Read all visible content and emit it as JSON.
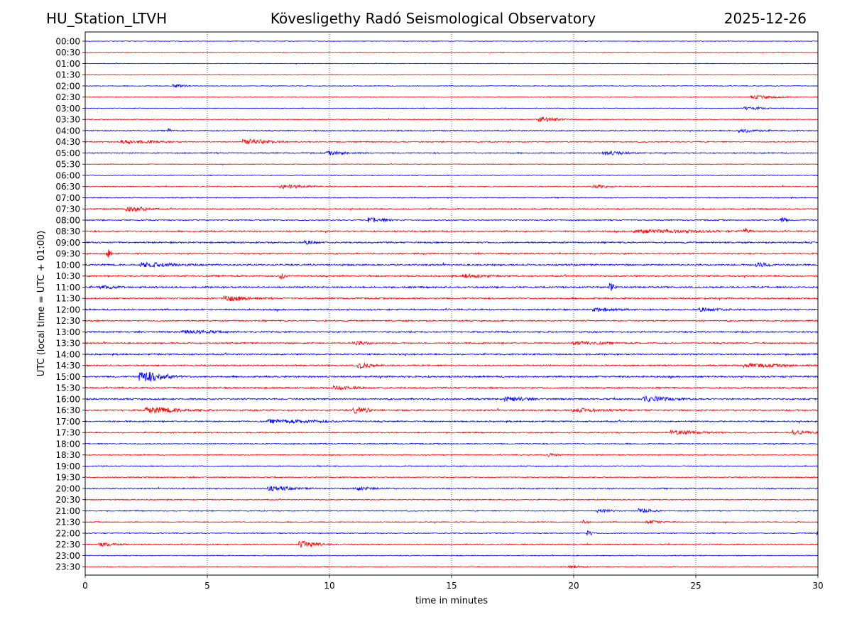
{
  "header": {
    "station": "HU_Station_LTVH",
    "title": "Kövesligethy Radó Seismological Observatory",
    "date": "2025-12-26"
  },
  "chart_data": {
    "type": "line",
    "title": "Kövesligethy Radó Seismological Observatory",
    "xlabel": "time in minutes",
    "ylabel": "UTC (local time = UTC + 01:00)",
    "xlim": [
      0,
      30
    ],
    "xticks": [
      0,
      5,
      10,
      15,
      20,
      25,
      30
    ],
    "grid": "vertical dotted at x ticks",
    "trace_colors": [
      "#0000ff",
      "#ff0000"
    ],
    "row_labels": [
      "00:00",
      "00:30",
      "01:00",
      "01:30",
      "02:00",
      "02:30",
      "03:00",
      "03:30",
      "04:00",
      "04:30",
      "05:00",
      "05:30",
      "06:00",
      "06:30",
      "07:00",
      "07:30",
      "08:00",
      "08:30",
      "09:00",
      "09:30",
      "10:00",
      "10:30",
      "11:00",
      "11:30",
      "12:00",
      "12:30",
      "13:00",
      "13:30",
      "14:00",
      "14:30",
      "15:00",
      "15:30",
      "16:00",
      "16:30",
      "17:00",
      "17:30",
      "18:00",
      "18:30",
      "19:00",
      "19:30",
      "20:00",
      "20:30",
      "21:00",
      "21:30",
      "22:00",
      "22:30",
      "23:00",
      "23:30"
    ],
    "noise_levels": [
      0.5,
      0.5,
      0.5,
      0.5,
      0.6,
      0.6,
      0.6,
      0.6,
      0.8,
      0.9,
      0.9,
      0.6,
      0.6,
      0.8,
      0.7,
      0.9,
      0.9,
      1.1,
      1.2,
      1.1,
      1.3,
      1.2,
      1.3,
      1.2,
      1.2,
      1.1,
      1.2,
      1.1,
      1.2,
      1.1,
      1.3,
      1.2,
      1.3,
      1.2,
      1.1,
      1.0,
      0.9,
      0.8,
      0.8,
      0.8,
      0.9,
      0.8,
      0.8,
      0.8,
      0.8,
      0.9,
      0.7,
      0.6
    ],
    "events": [
      {
        "row": 4,
        "t": 3.6,
        "amp": 2.0,
        "dur": 0.8
      },
      {
        "row": 5,
        "t": 27.3,
        "amp": 2.0,
        "dur": 1.8
      },
      {
        "row": 6,
        "t": 27.0,
        "amp": 2.0,
        "dur": 1.2
      },
      {
        "row": 7,
        "t": 18.6,
        "amp": 3.5,
        "dur": 1.2
      },
      {
        "row": 8,
        "t": 3.4,
        "amp": 2.0,
        "dur": 0.2
      },
      {
        "row": 8,
        "t": 26.8,
        "amp": 2.0,
        "dur": 1.5
      },
      {
        "row": 9,
        "t": 1.5,
        "amp": 2.0,
        "dur": 2.5
      },
      {
        "row": 9,
        "t": 6.5,
        "amp": 3.0,
        "dur": 2.0
      },
      {
        "row": 10,
        "t": 9.9,
        "amp": 2.0,
        "dur": 1.5
      },
      {
        "row": 10,
        "t": 21.2,
        "amp": 2.5,
        "dur": 1.5
      },
      {
        "row": 13,
        "t": 8.0,
        "amp": 2.2,
        "dur": 2.0
      },
      {
        "row": 13,
        "t": 20.8,
        "amp": 2.0,
        "dur": 1.0
      },
      {
        "row": 15,
        "t": 1.7,
        "amp": 3.5,
        "dur": 1.3
      },
      {
        "row": 16,
        "t": 11.6,
        "amp": 3.0,
        "dur": 1.3
      },
      {
        "row": 16,
        "t": 28.5,
        "amp": 3.5,
        "dur": 0.3
      },
      {
        "row": 17,
        "t": 22.5,
        "amp": 2.0,
        "dur": 5.0
      },
      {
        "row": 17,
        "t": 27.0,
        "amp": 4.0,
        "dur": 0.2
      },
      {
        "row": 18,
        "t": 9.0,
        "amp": 2.0,
        "dur": 0.8
      },
      {
        "row": 19,
        "t": 0.9,
        "amp": 6.0,
        "dur": 0.2
      },
      {
        "row": 20,
        "t": 2.3,
        "amp": 2.5,
        "dur": 2.5
      },
      {
        "row": 20,
        "t": 27.5,
        "amp": 2.5,
        "dur": 1.0
      },
      {
        "row": 21,
        "t": 8.0,
        "amp": 4.0,
        "dur": 0.3
      },
      {
        "row": 21,
        "t": 15.5,
        "amp": 2.0,
        "dur": 1.5
      },
      {
        "row": 22,
        "t": 21.5,
        "amp": 6.0,
        "dur": 0.2
      },
      {
        "row": 22,
        "t": 0.6,
        "amp": 2.0,
        "dur": 1.0
      },
      {
        "row": 23,
        "t": 5.7,
        "amp": 3.5,
        "dur": 1.5
      },
      {
        "row": 24,
        "t": 20.8,
        "amp": 2.0,
        "dur": 1.5
      },
      {
        "row": 24,
        "t": 25.2,
        "amp": 2.0,
        "dur": 1.5
      },
      {
        "row": 26,
        "t": 4.0,
        "amp": 1.8,
        "dur": 2.5
      },
      {
        "row": 27,
        "t": 11.0,
        "amp": 2.0,
        "dur": 1.0
      },
      {
        "row": 27,
        "t": 20.0,
        "amp": 2.0,
        "dur": 2.0
      },
      {
        "row": 29,
        "t": 11.2,
        "amp": 3.0,
        "dur": 1.0
      },
      {
        "row": 29,
        "t": 27.0,
        "amp": 2.0,
        "dur": 3.0
      },
      {
        "row": 30,
        "t": 2.2,
        "amp": 7.0,
        "dur": 1.8
      },
      {
        "row": 31,
        "t": 10.2,
        "amp": 2.0,
        "dur": 1.5
      },
      {
        "row": 32,
        "t": 17.2,
        "amp": 2.5,
        "dur": 1.5
      },
      {
        "row": 32,
        "t": 22.8,
        "amp": 3.0,
        "dur": 2.0
      },
      {
        "row": 33,
        "t": 2.5,
        "amp": 3.5,
        "dur": 2.5
      },
      {
        "row": 33,
        "t": 11.0,
        "amp": 3.5,
        "dur": 1.0
      },
      {
        "row": 33,
        "t": 20.0,
        "amp": 2.0,
        "dur": 2.0
      },
      {
        "row": 34,
        "t": 7.5,
        "amp": 2.0,
        "dur": 4.0
      },
      {
        "row": 35,
        "t": 24.0,
        "amp": 2.5,
        "dur": 2.0
      },
      {
        "row": 35,
        "t": 29.0,
        "amp": 2.5,
        "dur": 1.0
      },
      {
        "row": 37,
        "t": 19.0,
        "amp": 2.0,
        "dur": 0.6
      },
      {
        "row": 40,
        "t": 7.5,
        "amp": 2.5,
        "dur": 2.0
      },
      {
        "row": 40,
        "t": 11.0,
        "amp": 2.0,
        "dur": 1.5
      },
      {
        "row": 42,
        "t": 22.7,
        "amp": 3.0,
        "dur": 0.8
      },
      {
        "row": 42,
        "t": 21.0,
        "amp": 2.0,
        "dur": 1.0
      },
      {
        "row": 43,
        "t": 20.4,
        "amp": 4.0,
        "dur": 0.2
      },
      {
        "row": 43,
        "t": 23.0,
        "amp": 2.0,
        "dur": 1.0
      },
      {
        "row": 44,
        "t": 20.6,
        "amp": 3.0,
        "dur": 0.2
      },
      {
        "row": 44,
        "t": 30.0,
        "amp": 4.0,
        "dur": 0.2
      },
      {
        "row": 45,
        "t": 8.8,
        "amp": 4.0,
        "dur": 1.3
      },
      {
        "row": 45,
        "t": 0.6,
        "amp": 2.0,
        "dur": 1.0
      },
      {
        "row": 47,
        "t": 19.8,
        "amp": 1.6,
        "dur": 1.0
      }
    ]
  }
}
